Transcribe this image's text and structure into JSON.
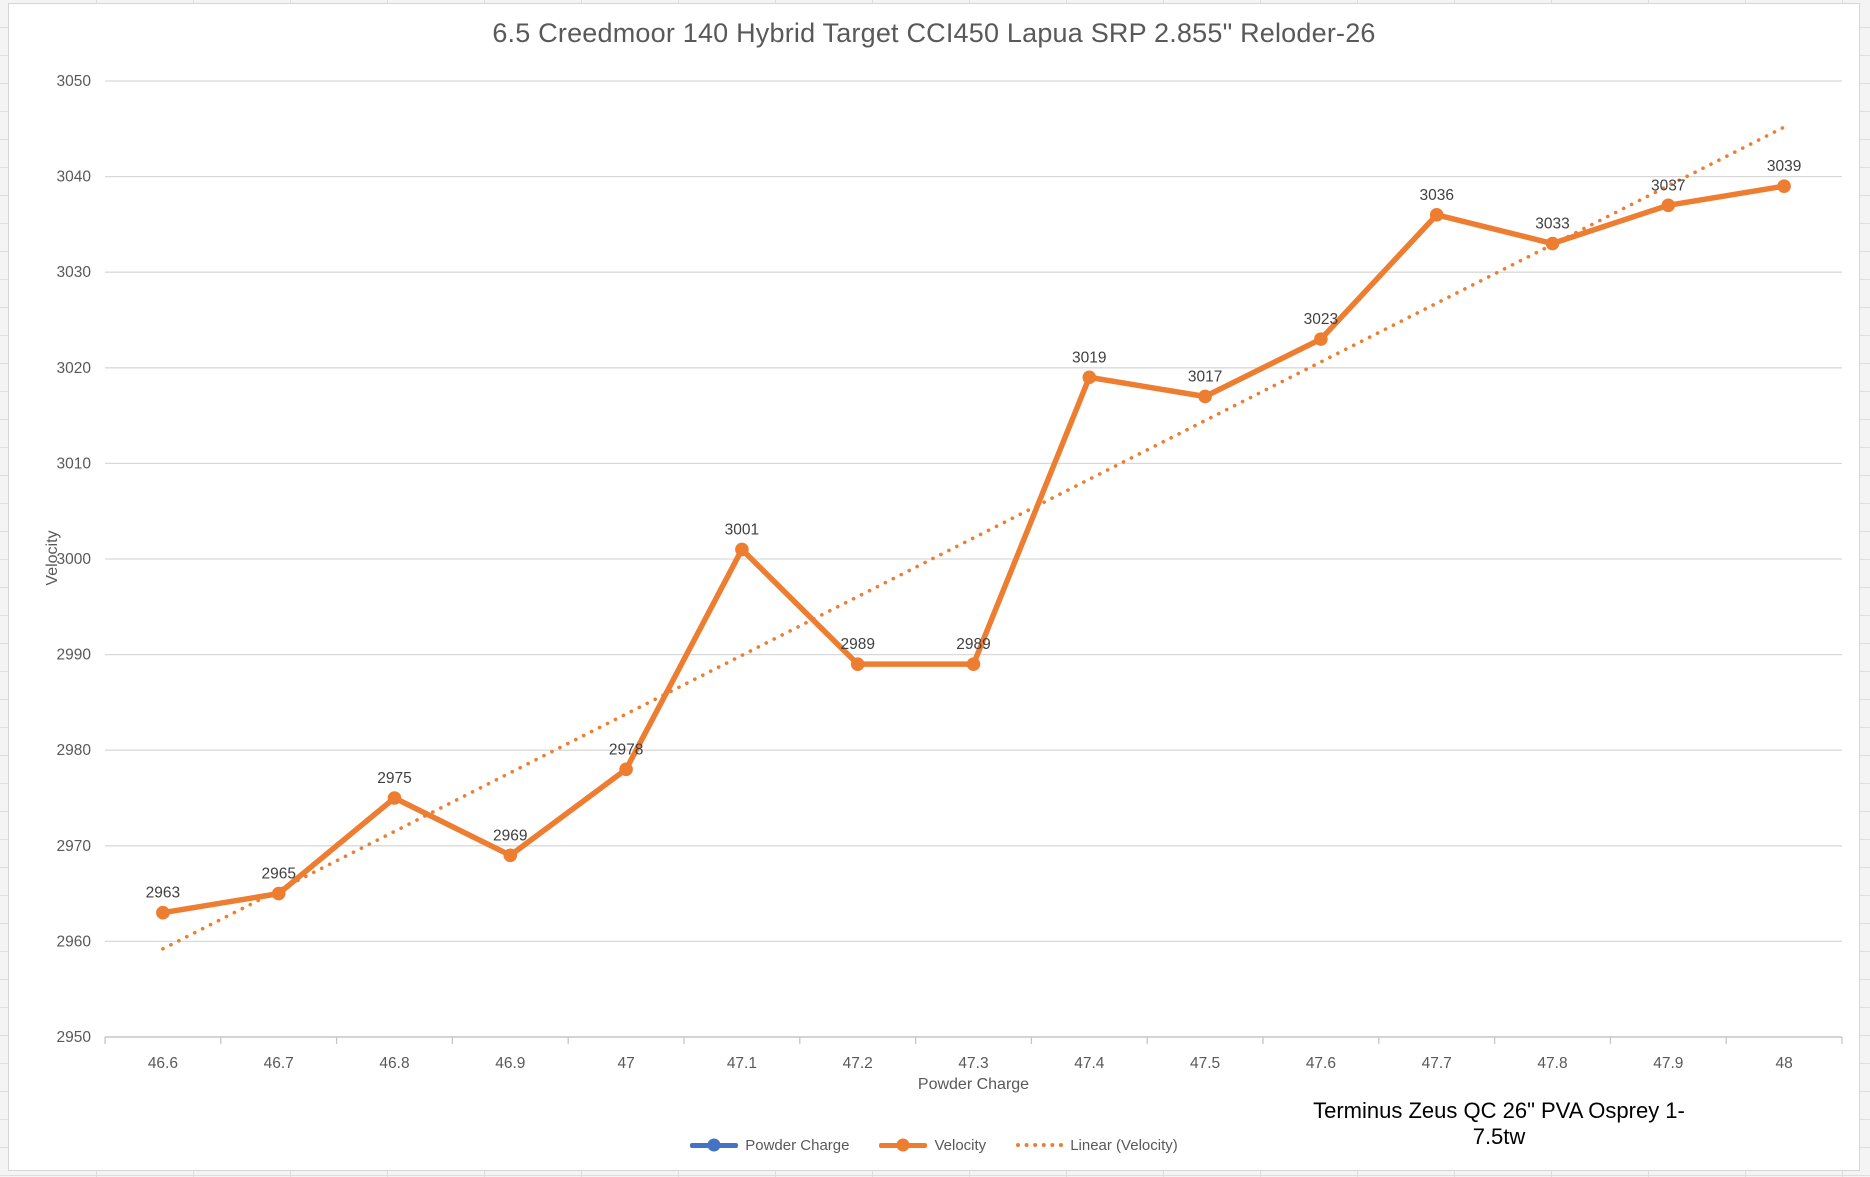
{
  "chart_data": {
    "type": "line",
    "title": "6.5 Creedmoor 140 Hybrid Target CCI450 Lapua SRP 2.855\" Reloder-26",
    "xlabel": "Powder Charge",
    "ylabel": "Velocity",
    "categories": [
      "46.6",
      "46.7",
      "46.8",
      "46.9",
      "47",
      "47.1",
      "47.2",
      "47.3",
      "47.4",
      "47.5",
      "47.6",
      "47.7",
      "47.8",
      "47.9",
      "48"
    ],
    "series": [
      {
        "name": "Velocity",
        "color": "#ED7D31",
        "values": [
          2963,
          2965,
          2975,
          2969,
          2978,
          3001,
          2989,
          2989,
          3019,
          3017,
          3023,
          3036,
          3033,
          3037,
          3039
        ]
      }
    ],
    "trendline": {
      "name": "Linear (Velocity)",
      "style": "dotted",
      "color": "#ED7D31"
    },
    "legend": [
      {
        "label": "Powder Charge",
        "color": "#4472C4",
        "style": "solid-marker"
      },
      {
        "label": "Velocity",
        "color": "#ED7D31",
        "style": "solid-marker"
      },
      {
        "label": "Linear (Velocity)",
        "color": "#ED7D31",
        "style": "dotted"
      }
    ],
    "legend_position": "bottom",
    "ylim": [
      2950,
      3050
    ],
    "yticks": [
      2950,
      2960,
      2970,
      2980,
      2990,
      3000,
      3010,
      3020,
      3030,
      3040,
      3050
    ],
    "grid": true,
    "data_labels": true
  },
  "annotation": {
    "text": "Terminus Zeus QC 26\" PVA Osprey 1-7.5tw"
  },
  "colors": {
    "velocity_series": "#ED7D31",
    "powder_charge_series": "#4472C4",
    "gridline": "#d9d9d9",
    "axis_text": "#595959",
    "data_label_text": "#404040",
    "chart_background": "#ffffff"
  }
}
